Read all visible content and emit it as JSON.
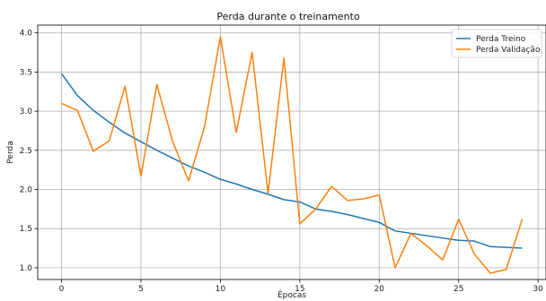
{
  "chart_data": {
    "type": "line",
    "title": "Perda durante o treinamento",
    "xlabel": "Épocas",
    "ylabel": "Perda",
    "xlim": [
      -1.5,
      30.5
    ],
    "ylim": [
      0.85,
      4.1
    ],
    "xticks": [
      0,
      5,
      10,
      15,
      20,
      25,
      30
    ],
    "yticks": [
      1.0,
      1.5,
      2.0,
      2.5,
      3.0,
      3.5,
      4.0
    ],
    "grid": true,
    "legend_position": "top-right",
    "x": [
      0,
      1,
      2,
      3,
      4,
      5,
      6,
      7,
      8,
      9,
      10,
      11,
      12,
      13,
      14,
      15,
      16,
      17,
      18,
      19,
      20,
      21,
      22,
      23,
      24,
      25,
      26,
      27,
      28,
      29
    ],
    "series": [
      {
        "name": "Perda Treino",
        "color": "#1f77b4",
        "values": [
          3.48,
          3.2,
          3.01,
          2.86,
          2.72,
          2.61,
          2.5,
          2.4,
          2.3,
          2.22,
          2.13,
          2.07,
          2.0,
          1.94,
          1.87,
          1.84,
          1.75,
          1.72,
          1.68,
          1.63,
          1.58,
          1.47,
          1.44,
          1.41,
          1.38,
          1.35,
          1.34,
          1.27,
          1.26,
          1.25
        ]
      },
      {
        "name": "Perda Validação",
        "color": "#ff7f0e",
        "values": [
          3.1,
          3.01,
          2.49,
          2.62,
          3.32,
          2.17,
          3.34,
          2.61,
          2.11,
          2.8,
          3.95,
          2.73,
          3.75,
          1.95,
          3.68,
          1.56,
          1.75,
          2.04,
          1.86,
          1.88,
          1.93,
          1.0,
          1.44,
          1.28,
          1.1,
          1.62,
          1.17,
          0.93,
          0.98,
          1.62
        ]
      }
    ]
  }
}
